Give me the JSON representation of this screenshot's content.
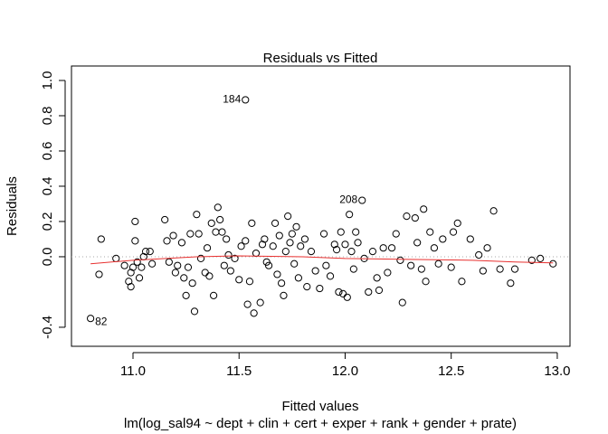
{
  "chart_data": {
    "type": "scatter",
    "title": "Residuals vs Fitted",
    "x_label": "Fitted values",
    "y_label": "Residuals",
    "subtitle": "lm(log_sal94 ~ dept + clin + cert + exper + rank + gender + prate)",
    "xlim": [
      10.71,
      13.06
    ],
    "ylim": [
      -0.508,
      1.082
    ],
    "xticks": [
      {
        "value": 11,
        "label": "11.0"
      },
      11.5,
      {
        "value": 12,
        "label": "12.0"
      },
      12.5,
      {
        "value": 13,
        "label": "13.0"
      }
    ],
    "yticks": [
      -0.4,
      {
        "value": 0,
        "label": "0.0"
      },
      0.2,
      0.4,
      0.6,
      0.8,
      {
        "value": 1,
        "label": "1.0"
      }
    ],
    "reference_line": 0,
    "series": [
      {
        "color": "#000000",
        "x": [
          10.8,
          10.84,
          10.85,
          10.92,
          10.96,
          10.98,
          10.99,
          10.99,
          11.0,
          11.01,
          11.01,
          11.02,
          11.03,
          11.04,
          11.05,
          11.06,
          11.08,
          11.09,
          11.15,
          11.16,
          11.17,
          11.19,
          11.2,
          11.21,
          11.23,
          11.24,
          11.25,
          11.26,
          11.27,
          11.28,
          11.29,
          11.3,
          11.31,
          11.32,
          11.34,
          11.35,
          11.36,
          11.37,
          11.38,
          11.39,
          11.4,
          11.41,
          11.42,
          11.43,
          11.44,
          11.45,
          11.46,
          11.48,
          11.5,
          11.51,
          11.53,
          11.53,
          11.54,
          11.55,
          11.56,
          11.57,
          11.58,
          11.6,
          11.61,
          11.62,
          11.63,
          11.64,
          11.66,
          11.67,
          11.68,
          11.69,
          11.7,
          11.71,
          11.72,
          11.73,
          11.74,
          11.75,
          11.76,
          11.77,
          11.78,
          11.79,
          11.81,
          11.82,
          11.84,
          11.86,
          11.88,
          11.9,
          11.91,
          11.93,
          11.95,
          11.96,
          11.97,
          11.98,
          11.99,
          12.0,
          12.01,
          12.02,
          12.03,
          12.04,
          12.05,
          12.06,
          12.08,
          12.09,
          12.11,
          12.13,
          12.15,
          12.16,
          12.18,
          12.2,
          12.22,
          12.24,
          12.26,
          12.27,
          12.29,
          12.31,
          12.33,
          12.34,
          12.36,
          12.37,
          12.38,
          12.4,
          12.42,
          12.44,
          12.46,
          12.5,
          12.51,
          12.53,
          12.55,
          12.59,
          12.63,
          12.65,
          12.67,
          12.7,
          12.73,
          12.78,
          12.8,
          12.88,
          12.92,
          12.98
        ],
        "values": [
          -0.35,
          -0.1,
          0.1,
          -0.01,
          -0.05,
          -0.14,
          -0.17,
          -0.09,
          -0.06,
          0.2,
          0.09,
          -0.03,
          -0.12,
          -0.06,
          0.0,
          0.03,
          0.03,
          -0.04,
          0.21,
          0.09,
          -0.03,
          0.12,
          -0.09,
          -0.05,
          0.08,
          -0.12,
          -0.22,
          -0.06,
          0.13,
          -0.15,
          -0.31,
          0.24,
          0.13,
          -0.01,
          -0.09,
          0.05,
          -0.11,
          0.19,
          -0.22,
          0.14,
          0.28,
          0.21,
          0.14,
          -0.05,
          0.1,
          0.01,
          -0.08,
          -0.01,
          -0.13,
          0.06,
          0.89,
          0.09,
          -0.27,
          -0.14,
          0.19,
          -0.32,
          0.02,
          -0.26,
          0.07,
          0.1,
          -0.03,
          -0.05,
          0.06,
          0.19,
          -0.1,
          0.12,
          -0.15,
          -0.22,
          0.03,
          0.23,
          0.08,
          0.13,
          -0.04,
          0.17,
          -0.12,
          0.06,
          0.1,
          -0.17,
          0.03,
          -0.08,
          -0.18,
          0.13,
          -0.05,
          -0.11,
          0.07,
          0.04,
          -0.2,
          0.14,
          -0.21,
          0.07,
          -0.23,
          0.24,
          0.03,
          -0.07,
          0.14,
          0.08,
          0.32,
          -0.01,
          -0.2,
          0.03,
          -0.12,
          -0.19,
          0.05,
          -0.09,
          0.05,
          0.13,
          -0.02,
          -0.26,
          0.23,
          -0.05,
          0.22,
          0.08,
          -0.07,
          0.27,
          -0.14,
          0.14,
          0.05,
          -0.04,
          0.1,
          -0.06,
          0.14,
          0.19,
          -0.14,
          0.1,
          0.01,
          -0.08,
          0.05,
          0.26,
          -0.07,
          -0.15,
          -0.07,
          -0.02,
          -0.01,
          -0.04
        ]
      },
      {
        "type": "line",
        "color": "#e8302f",
        "x": [
          10.8,
          11.0,
          11.3,
          11.5,
          11.8,
          12.0,
          12.3,
          12.6,
          12.8,
          12.98
        ],
        "values": [
          -0.04,
          -0.02,
          0.0,
          0.005,
          0.0,
          -0.01,
          -0.015,
          -0.02,
          -0.03,
          -0.035
        ]
      }
    ],
    "annotations": [
      {
        "text": "184",
        "x": 11.53,
        "y": 0.89
      },
      {
        "text": "208",
        "x": 12.08,
        "y": 0.32
      },
      {
        "text": "82",
        "x": 10.8,
        "y": -0.35
      }
    ]
  }
}
